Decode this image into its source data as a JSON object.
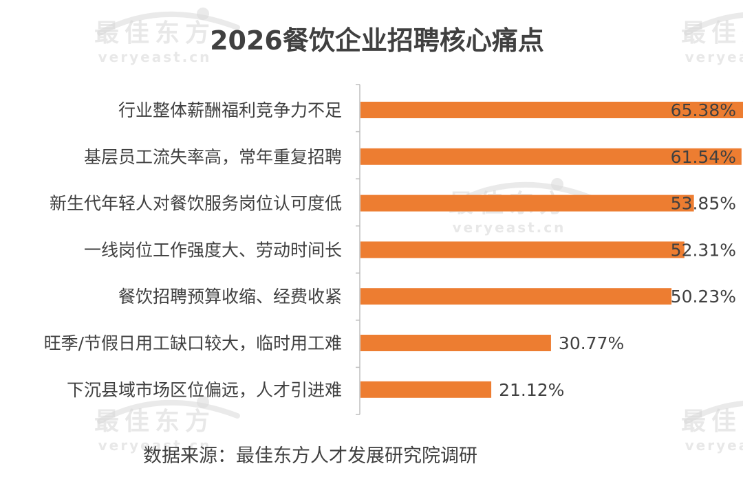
{
  "chart_data": {
    "type": "bar",
    "orientation": "horizontal",
    "title": "2026餐饮企业招聘核心痛点",
    "categories": [
      "行业整体薪酬福利竞争力不足",
      "基层员工流失率高，常年重复招聘",
      "新生代年轻人对餐饮服务岗位认可度低",
      "一线岗位工作强度大、劳动时间长",
      "餐饮招聘预算收缩、经费收紧",
      "旺季/节假日用工缺口较大，临时用工难",
      "下沉县域市场区位偏远，人才引进难"
    ],
    "values": [
      65.38,
      61.54,
      53.85,
      52.31,
      50.23,
      30.77,
      21.12
    ],
    "labels": [
      "65.38%",
      "61.54%",
      "53.85%",
      "52.31%",
      "50.23%",
      "30.77%",
      "21.12%"
    ],
    "value_unit": "%",
    "xlim": [
      0,
      80
    ],
    "grid": false,
    "legend": "none",
    "bar_color": "#ED7D31",
    "axis_color": "#BFBFBF"
  },
  "source": "数据来源：最佳东方人才发展研究院调研",
  "watermark": {
    "brand": "最佳东方",
    "url": "veryeast.cn",
    "color": "#D9D9D9"
  },
  "colors": {
    "title": "#404040",
    "label": "#404040",
    "source": "#404040"
  }
}
